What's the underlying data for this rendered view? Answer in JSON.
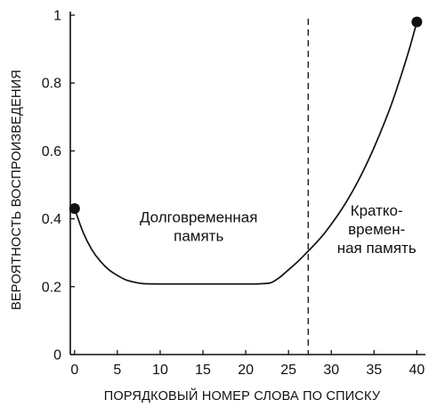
{
  "chart_data": {
    "type": "line",
    "title": "",
    "xlabel": "ПОРЯДКОВЫЙ НОМЕР СЛОВА ПО СПИСКУ",
    "ylabel": "ВЕРОЯТНОСТЬ ВОСПРОИЗВЕДЕНИЯ",
    "xlim": [
      -0.5,
      41
    ],
    "ylim": [
      0,
      1
    ],
    "xticks": [
      0,
      5,
      10,
      15,
      20,
      25,
      30,
      35,
      40
    ],
    "xtick_labels": [
      "0",
      "5",
      "10",
      "15",
      "20",
      "25",
      "30",
      "35",
      "40"
    ],
    "yticks": [
      0,
      0.2,
      0.4,
      0.6,
      0.8,
      1
    ],
    "ytick_labels": [
      "0",
      "0.2",
      "0.4",
      "0.6",
      "0.8",
      "1"
    ],
    "grid": false,
    "series": [
      {
        "x": [
          0,
          1,
          2,
          3,
          4,
          5,
          6,
          7,
          8,
          10,
          12,
          15,
          18,
          21,
          22,
          23,
          24,
          25,
          26,
          27,
          28,
          29,
          30,
          31,
          32,
          33,
          34,
          35,
          36,
          37,
          38,
          39,
          40
        ],
        "values": [
          0.43,
          0.36,
          0.31,
          0.275,
          0.25,
          0.233,
          0.22,
          0.213,
          0.209,
          0.208,
          0.208,
          0.208,
          0.208,
          0.208,
          0.209,
          0.212,
          0.228,
          0.25,
          0.272,
          0.297,
          0.323,
          0.351,
          0.384,
          0.42,
          0.46,
          0.505,
          0.555,
          0.61,
          0.67,
          0.735,
          0.81,
          0.89,
          0.98
        ]
      }
    ],
    "endpoints": [
      {
        "x": 0,
        "y": 0.43
      },
      {
        "x": 40,
        "y": 0.98
      }
    ],
    "reference_line": {
      "x": 27.3,
      "style": "dashed"
    },
    "annotations": [
      {
        "lines": [
          "Долговременная",
          "память"
        ],
        "x": 14.5,
        "y": 0.39
      },
      {
        "lines": [
          "Кратко-",
          "времен-",
          "ная память"
        ],
        "x": 35.3,
        "y": 0.41
      }
    ]
  }
}
